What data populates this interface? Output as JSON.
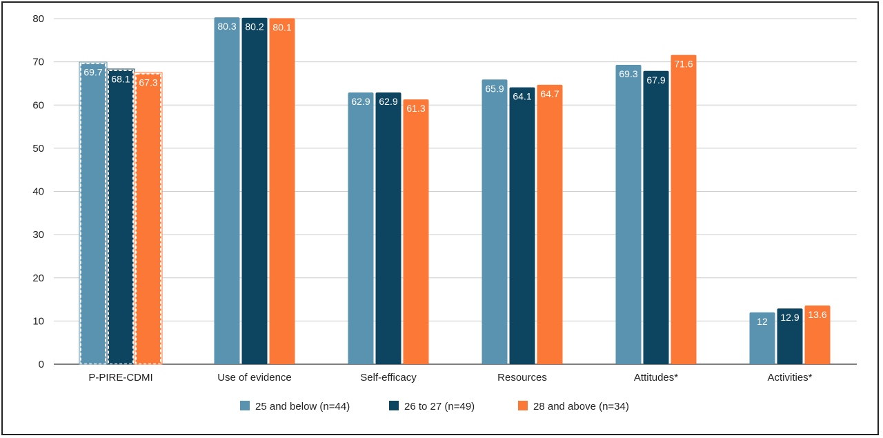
{
  "chart_data": {
    "type": "bar",
    "title": "",
    "xlabel": "",
    "ylabel": "",
    "ylim": [
      0,
      80
    ],
    "yticks": [
      0,
      10,
      20,
      30,
      40,
      50,
      60,
      70,
      80
    ],
    "grid": true,
    "legend_position": "bottom",
    "categories": [
      "P-PIRE-CDMI",
      "Use of evidence",
      "Self-efficacy",
      "Resources",
      "Attitudes*",
      "Activities*"
    ],
    "series": [
      {
        "name": "25 and below (n=44)",
        "color": "#5a93b0",
        "values": [
          69.7,
          80.3,
          62.9,
          65.9,
          69.3,
          12
        ],
        "labels": [
          "69.7",
          "80.3",
          "62.9",
          "65.9",
          "69.3",
          "12"
        ]
      },
      {
        "name": "26 to 27 (n=49)",
        "color": "#0d4460",
        "values": [
          68.1,
          80.2,
          62.9,
          64.1,
          67.9,
          12.9
        ],
        "labels": [
          "68.1",
          "80.2",
          "62.9",
          "64.1",
          "67.9",
          "12.9"
        ]
      },
      {
        "name": "28 and above (n=34)",
        "color": "#fb7837",
        "values": [
          67.3,
          80.1,
          61.3,
          64.7,
          71.6,
          13.6
        ],
        "labels": [
          "67.3",
          "80.1",
          "61.3",
          "64.7",
          "71.6",
          "13.6"
        ]
      }
    ],
    "dashed_outline_categories": [
      "P-PIRE-CDMI"
    ]
  }
}
